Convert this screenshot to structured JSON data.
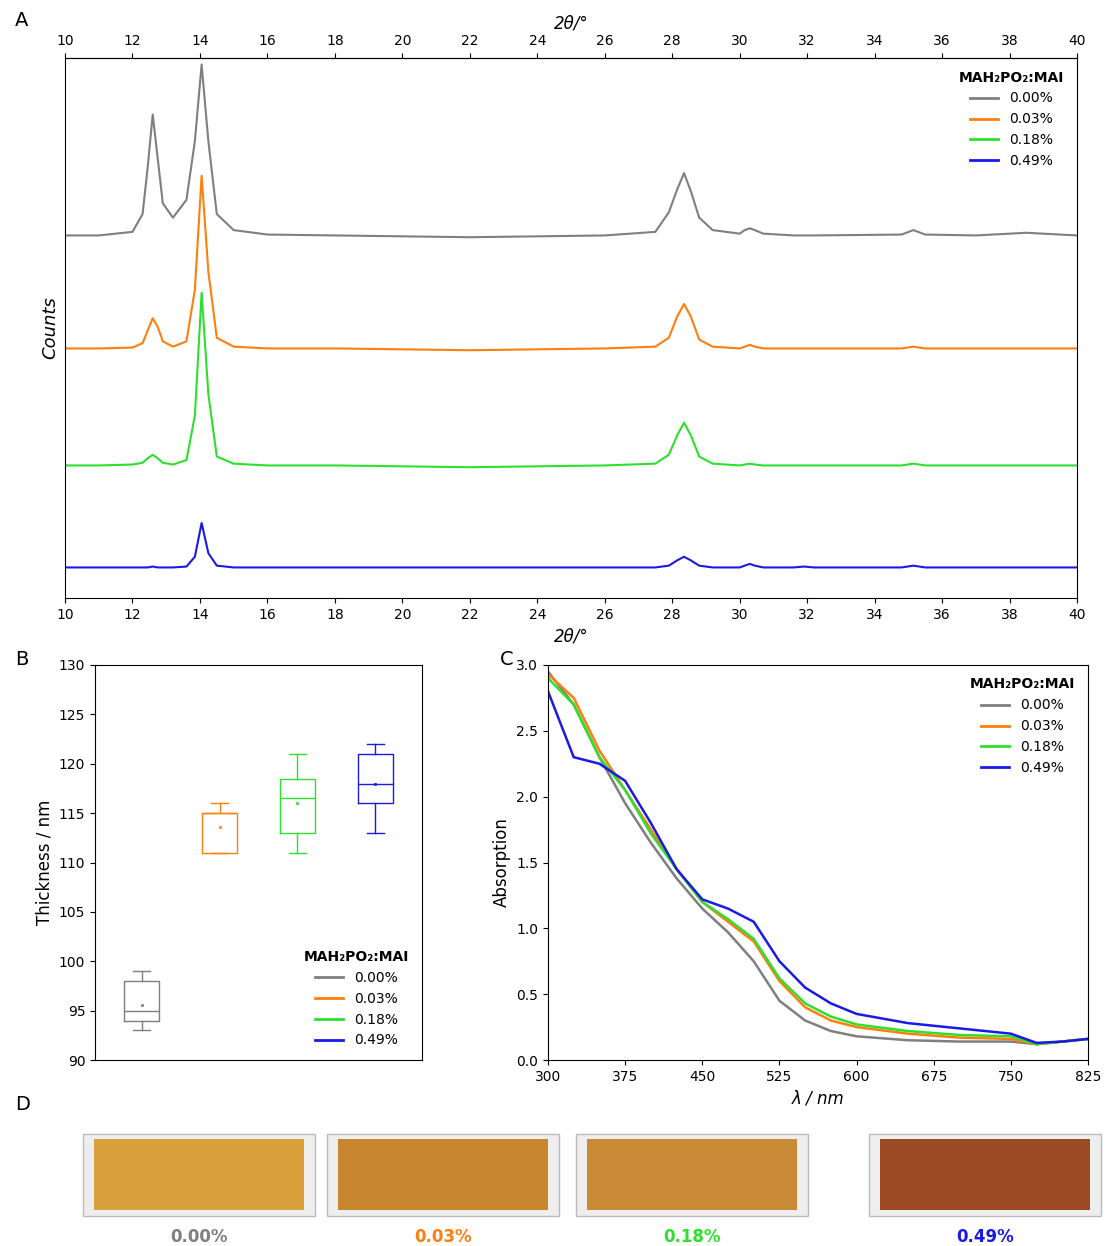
{
  "chart_data": [
    {
      "panel": "A",
      "type": "line",
      "x_label": "2θ/°",
      "y_label": "Counts",
      "legend_title": "MAH₂PO₂:MAI",
      "legend": "upper right",
      "tick_labels": "x",
      "xlim": [
        10,
        40
      ],
      "xticks": [
        10,
        12,
        14,
        16,
        18,
        20,
        22,
        24,
        26,
        28,
        30,
        32,
        34,
        36,
        38,
        40
      ],
      "ylim": [
        0,
        100
      ],
      "x": [
        10,
        11,
        12,
        12.3,
        12.45,
        12.6,
        12.75,
        12.9,
        13.2,
        13.6,
        13.85,
        14.05,
        14.25,
        14.5,
        15,
        16,
        18,
        20,
        22,
        24,
        26,
        27.5,
        27.9,
        28.15,
        28.35,
        28.55,
        28.8,
        29.2,
        30,
        30.15,
        30.3,
        30.45,
        30.7,
        31.6,
        31.9,
        32.2,
        34.8,
        35.15,
        35.5,
        37,
        38.5,
        40
      ],
      "series": [
        {
          "name": "0.00%",
          "color": "#7f7f7f",
          "values": [
            2,
            2,
            4,
            14,
            40,
            70,
            45,
            20,
            12,
            22,
            55,
            98,
            55,
            14,
            5,
            2.5,
            2,
            1.5,
            1,
            1.5,
            2,
            4,
            15,
            28,
            37,
            27,
            12,
            5,
            3,
            5,
            6,
            5,
            3,
            2,
            2,
            2,
            2.5,
            5,
            2.5,
            2,
            3.5,
            2
          ]
        },
        {
          "name": "0.03%",
          "color": "#ff7f0e",
          "values": [
            2,
            2,
            2.5,
            5,
            12,
            19,
            14,
            6,
            3,
            6,
            35,
            99,
            45,
            8,
            3,
            2,
            2,
            1.5,
            1,
            1.5,
            2,
            3,
            8,
            20,
            27,
            20,
            7,
            3,
            2,
            3,
            4,
            3,
            2,
            2,
            2,
            2,
            2,
            3,
            2,
            2,
            2,
            2
          ]
        },
        {
          "name": "0.18%",
          "color": "#2ee02e",
          "values": [
            2,
            2,
            2.5,
            3.5,
            6,
            8,
            6,
            3.5,
            2.5,
            5,
            30,
            99,
            42,
            7,
            3,
            2,
            2,
            1.5,
            1,
            1.5,
            2,
            3,
            8,
            19,
            26,
            19,
            7,
            3,
            2,
            2.5,
            3,
            2.5,
            2,
            2,
            2,
            2,
            2,
            3,
            2,
            2,
            2,
            2
          ]
        },
        {
          "name": "0.49%",
          "color": "#1a1ae6",
          "values": [
            2,
            2,
            2,
            2,
            2,
            2.5,
            2,
            2,
            2,
            2.5,
            8,
            27,
            10,
            3,
            2,
            2,
            2,
            2,
            2,
            2,
            2,
            2,
            3,
            6,
            8,
            6,
            3,
            2,
            2,
            3,
            4,
            3,
            2,
            2,
            2.5,
            2,
            2,
            3,
            2,
            2,
            2,
            2
          ]
        }
      ]
    },
    {
      "panel": "B",
      "type": "box",
      "y_label": "Thickness / nm",
      "legend_title": "MAH₂PO₂:MAI",
      "legend": "lower right",
      "tick_labels": "y",
      "ylim": [
        90,
        130
      ],
      "yticks": [
        90,
        95,
        100,
        105,
        110,
        115,
        120,
        125,
        130
      ],
      "series": [
        {
          "name": "0.00%",
          "color": "#7f7f7f",
          "whislo": 93,
          "q1": 94,
          "med": 95,
          "q3": 98,
          "whishi": 99,
          "mean": 95.6
        },
        {
          "name": "0.03%",
          "color": "#ff7f0e",
          "whislo": 111,
          "q1": 111,
          "med": 115,
          "q3": 115,
          "whishi": 116,
          "mean": 113.6
        },
        {
          "name": "0.18%",
          "color": "#2ee02e",
          "whislo": 111,
          "q1": 113,
          "med": 116.5,
          "q3": 118.5,
          "whishi": 121,
          "mean": 116
        },
        {
          "name": "0.49%",
          "color": "#1a1ae6",
          "whislo": 113,
          "q1": 116,
          "med": 118,
          "q3": 121,
          "whishi": 122,
          "mean": 118
        }
      ]
    },
    {
      "panel": "C",
      "type": "line",
      "x_label": "λ / nm",
      "y_label": "Absorption",
      "legend_title": "MAH₂PO₂:MAI",
      "legend": "upper right",
      "xlim": [
        300,
        825
      ],
      "xticks": [
        300,
        375,
        450,
        525,
        600,
        675,
        750,
        825
      ],
      "ylim": [
        0,
        3.0
      ],
      "yticks": [
        {
          "value": 0,
          "label": "0.0"
        },
        {
          "value": 0.5,
          "label": "0.5"
        },
        {
          "value": 1.0,
          "label": "1.0"
        },
        {
          "value": 1.5,
          "label": "1.5"
        },
        {
          "value": 2.0,
          "label": "2.0"
        },
        {
          "value": 2.5,
          "label": "2.5"
        },
        {
          "value": 3.0,
          "label": "3.0"
        }
      ],
      "x": [
        300,
        325,
        350,
        375,
        400,
        425,
        450,
        475,
        500,
        525,
        550,
        575,
        600,
        650,
        700,
        750,
        775,
        800,
        825
      ],
      "series": [
        {
          "name": "0.00%",
          "color": "#7f7f7f",
          "values": [
            2.95,
            2.7,
            2.3,
            1.95,
            1.65,
            1.38,
            1.15,
            0.97,
            0.75,
            0.45,
            0.3,
            0.22,
            0.18,
            0.15,
            0.14,
            0.14,
            0.12,
            0.14,
            0.16
          ]
        },
        {
          "name": "0.03%",
          "color": "#ff7f0e",
          "values": [
            2.93,
            2.75,
            2.35,
            2.05,
            1.75,
            1.45,
            1.2,
            1.05,
            0.9,
            0.6,
            0.4,
            0.3,
            0.25,
            0.2,
            0.17,
            0.16,
            0.12,
            0.14,
            0.16
          ]
        },
        {
          "name": "0.18%",
          "color": "#2ee02e",
          "values": [
            2.9,
            2.7,
            2.3,
            2.05,
            1.72,
            1.45,
            1.2,
            1.07,
            0.92,
            0.62,
            0.43,
            0.33,
            0.27,
            0.22,
            0.19,
            0.18,
            0.12,
            0.14,
            0.16
          ]
        },
        {
          "name": "0.49%",
          "color": "#1a1ae6",
          "values": [
            2.8,
            2.3,
            2.25,
            2.12,
            1.8,
            1.45,
            1.22,
            1.15,
            1.05,
            0.75,
            0.55,
            0.43,
            0.35,
            0.28,
            0.24,
            0.2,
            0.13,
            0.14,
            0.16
          ]
        }
      ]
    }
  ],
  "photos": {
    "panel": "D",
    "items": [
      {
        "label": "0.00%",
        "label_color": "#7f7f7f",
        "film_color": "#d9a03c"
      },
      {
        "label": "0.03%",
        "label_color": "#ff7f0e",
        "film_color": "#c8862f"
      },
      {
        "label": "0.18%",
        "label_color": "#2ee02e",
        "film_color": "#c98a35"
      },
      {
        "label": "0.49%",
        "label_color": "#1a1ae6",
        "film_color": "#9c4a24"
      }
    ]
  }
}
